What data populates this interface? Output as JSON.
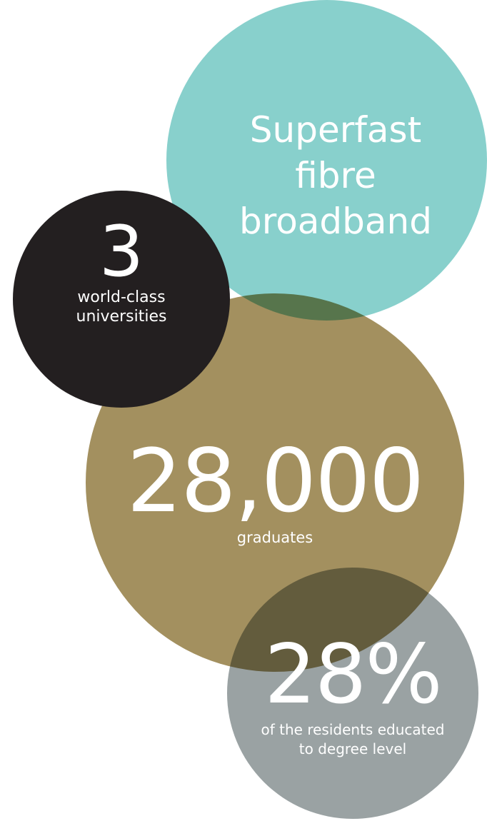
{
  "stats": {
    "broadband": {
      "lines": [
        "Superfast",
        "fibre",
        "broadband"
      ],
      "color": "#88d0cc"
    },
    "universities": {
      "number": "3",
      "label_lines": [
        "world-class",
        "universities"
      ],
      "color": "#231f20"
    },
    "graduates": {
      "number": "28,000",
      "label": "graduates",
      "color": "#a3905f"
    },
    "degree": {
      "number": "28%",
      "label_lines": [
        "of the residents educated",
        "to degree level"
      ],
      "color": "#9aa2a3"
    }
  }
}
